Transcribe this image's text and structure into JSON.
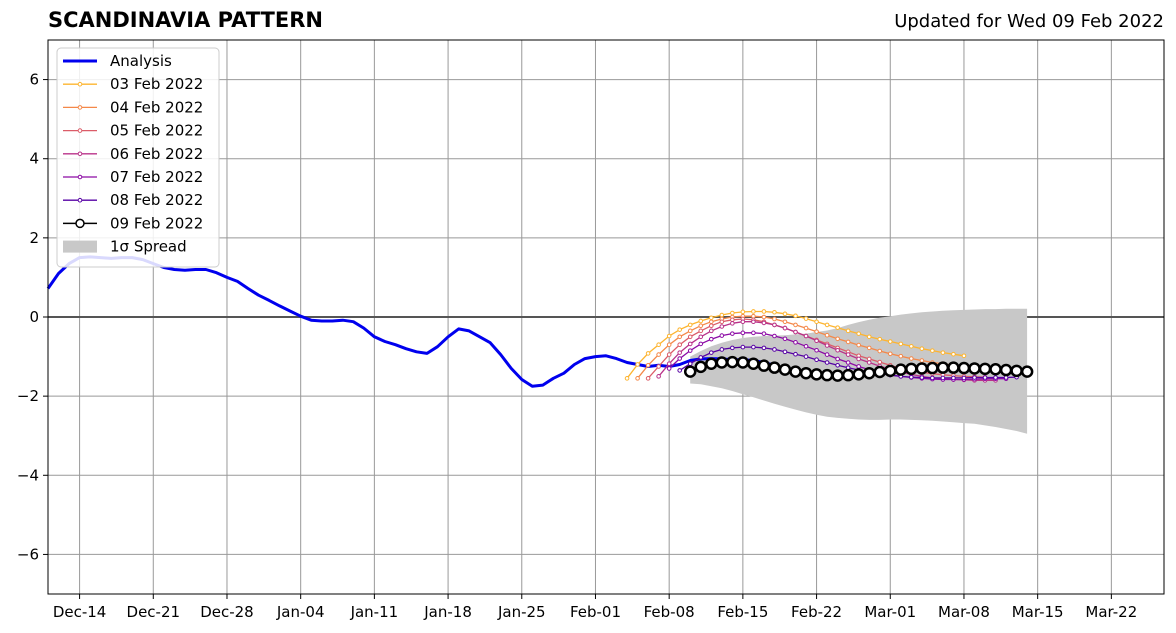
{
  "header": {
    "title": "SCANDINAVIA PATTERN",
    "subtitle": "Updated for Wed 09 Feb 2022"
  },
  "colors": {
    "analysis": "#0000ee",
    "spread": "#c8c8c8",
    "grid": "#999999",
    "zero_line": "#555555",
    "series": {
      "03 Feb 2022": "#fdb42f",
      "04 Feb 2022": "#f48849",
      "05 Feb 2022": "#db5c68",
      "06 Feb 2022": "#b93289",
      "07 Feb 2022": "#8c0aa5",
      "08 Feb 2022": "#5601a4",
      "09 Feb 2022": "#000000"
    }
  },
  "chart_data": {
    "type": "line",
    "title": "SCANDINAVIA PATTERN",
    "subtitle": "Updated for Wed 09 Feb 2022",
    "xlabel": "",
    "ylabel": "",
    "xlim": [
      "2021-12-11",
      "2022-03-27"
    ],
    "ylim": [
      -7,
      7
    ],
    "grid": true,
    "legend_position": "top-left",
    "x_ticks": [
      "2021-12-14",
      "2021-12-21",
      "2021-12-28",
      "2022-01-04",
      "2022-01-11",
      "2022-01-18",
      "2022-01-25",
      "2022-02-01",
      "2022-02-08",
      "2022-02-15",
      "2022-02-22",
      "2022-03-01",
      "2022-03-08",
      "2022-03-15",
      "2022-03-22"
    ],
    "x_tick_labels": [
      "Dec-14",
      "Dec-21",
      "Dec-28",
      "Jan-04",
      "Jan-11",
      "Jan-18",
      "Jan-25",
      "Feb-01",
      "Feb-08",
      "Feb-15",
      "Feb-22",
      "Mar-01",
      "Mar-08",
      "Mar-15",
      "Mar-22"
    ],
    "y_ticks": [
      -6,
      -4,
      -2,
      0,
      2,
      4,
      6
    ],
    "y_tick_labels": [
      "−6",
      "−4",
      "−2",
      "0",
      "2",
      "4",
      "6"
    ],
    "analysis": {
      "name": "Analysis",
      "start": "2021-12-11",
      "values": [
        0.72,
        1.1,
        1.35,
        1.5,
        1.52,
        1.5,
        1.48,
        1.5,
        1.5,
        1.45,
        1.35,
        1.25,
        1.2,
        1.18,
        1.2,
        1.2,
        1.12,
        1.0,
        0.9,
        0.72,
        0.55,
        0.42,
        0.28,
        0.15,
        0.02,
        -0.08,
        -0.1,
        -0.1,
        -0.08,
        -0.12,
        -0.28,
        -0.5,
        -0.62,
        -0.7,
        -0.8,
        -0.88,
        -0.92,
        -0.75,
        -0.5,
        -0.3,
        -0.35,
        -0.5,
        -0.65,
        -0.95,
        -1.3,
        -1.58,
        -1.75,
        -1.72,
        -1.55,
        -1.42,
        -1.2,
        -1.05,
        -1.0,
        -0.98,
        -1.05,
        -1.15,
        -1.2,
        -1.25,
        -1.22,
        -1.25,
        -1.2,
        -1.1,
        -1.06,
        -1.05,
        -1.06,
        -1.08,
        -1.08,
        -1.1,
        -1.15,
        -1.22
      ]
    },
    "forecasts": [
      {
        "name": "03 Feb 2022",
        "start": "2022-02-04",
        "values": [
          -1.55,
          -1.2,
          -0.92,
          -0.7,
          -0.48,
          -0.32,
          -0.2,
          -0.1,
          -0.02,
          0.05,
          0.1,
          0.13,
          0.14,
          0.14,
          0.12,
          0.08,
          0.03,
          -0.04,
          -0.12,
          -0.2,
          -0.27,
          -0.35,
          -0.42,
          -0.5,
          -0.56,
          -0.62,
          -0.68,
          -0.74,
          -0.8,
          -0.85,
          -0.9,
          -0.94,
          -0.98
        ]
      },
      {
        "name": "04 Feb 2022",
        "start": "2022-02-05",
        "values": [
          -1.55,
          -1.22,
          -0.95,
          -0.7,
          -0.5,
          -0.35,
          -0.22,
          -0.12,
          -0.05,
          0.0,
          0.02,
          0.02,
          0.0,
          -0.05,
          -0.12,
          -0.2,
          -0.28,
          -0.37,
          -0.46,
          -0.55,
          -0.63,
          -0.71,
          -0.78,
          -0.86,
          -0.93,
          -0.99,
          -1.05,
          -1.1,
          -1.15,
          -1.18,
          -1.22,
          -1.24,
          -1.26
        ]
      },
      {
        "name": "05 Feb 2022",
        "start": "2022-02-06",
        "values": [
          -1.55,
          -1.25,
          -0.95,
          -0.7,
          -0.5,
          -0.35,
          -0.22,
          -0.12,
          -0.07,
          -0.05,
          -0.07,
          -0.12,
          -0.2,
          -0.28,
          -0.38,
          -0.48,
          -0.58,
          -0.68,
          -0.78,
          -0.88,
          -0.98,
          -1.06,
          -1.14,
          -1.22,
          -1.3,
          -1.35,
          -1.4,
          -1.43,
          -1.46,
          -1.48,
          -1.5,
          -1.51,
          -1.52
        ]
      },
      {
        "name": "06 Feb 2022",
        "start": "2022-02-07",
        "values": [
          -1.5,
          -1.18,
          -0.9,
          -0.68,
          -0.5,
          -0.35,
          -0.24,
          -0.16,
          -0.12,
          -0.12,
          -0.15,
          -0.2,
          -0.28,
          -0.38,
          -0.48,
          -0.6,
          -0.72,
          -0.84,
          -0.95,
          -1.06,
          -1.15,
          -1.24,
          -1.32,
          -1.39,
          -1.45,
          -1.5,
          -1.54,
          -1.56,
          -1.58,
          -1.59,
          -1.6,
          -1.6,
          -1.6
        ]
      },
      {
        "name": "07 Feb 2022",
        "start": "2022-02-08",
        "values": [
          -1.3,
          -1.05,
          -0.85,
          -0.68,
          -0.56,
          -0.47,
          -0.42,
          -0.4,
          -0.4,
          -0.42,
          -0.48,
          -0.55,
          -0.64,
          -0.74,
          -0.84,
          -0.95,
          -1.06,
          -1.15,
          -1.25,
          -1.33,
          -1.4,
          -1.46,
          -1.5,
          -1.53,
          -1.55,
          -1.57,
          -1.58,
          -1.58,
          -1.58,
          -1.57,
          -1.56,
          -1.56,
          -1.56
        ]
      },
      {
        "name": "08 Feb 2022",
        "start": "2022-02-09",
        "values": [
          -1.35,
          -1.18,
          -1.02,
          -0.9,
          -0.82,
          -0.78,
          -0.76,
          -0.76,
          -0.78,
          -0.82,
          -0.88,
          -0.94,
          -1.0,
          -1.08,
          -1.15,
          -1.22,
          -1.28,
          -1.34,
          -1.39,
          -1.43,
          -1.47,
          -1.5,
          -1.52,
          -1.53,
          -1.54,
          -1.54,
          -1.54,
          -1.54,
          -1.53,
          -1.53,
          -1.53,
          -1.53,
          -1.52
        ]
      },
      {
        "name": "09 Feb 2022",
        "start": "2022-02-10",
        "values": [
          -1.38,
          -1.26,
          -1.18,
          -1.15,
          -1.14,
          -1.15,
          -1.18,
          -1.23,
          -1.28,
          -1.33,
          -1.38,
          -1.42,
          -1.45,
          -1.47,
          -1.48,
          -1.47,
          -1.45,
          -1.42,
          -1.39,
          -1.36,
          -1.33,
          -1.31,
          -1.3,
          -1.29,
          -1.28,
          -1.28,
          -1.29,
          -1.3,
          -1.31,
          -1.32,
          -1.34,
          -1.36,
          -1.38
        ]
      }
    ],
    "spread": {
      "name": "1σ Spread",
      "start": "2022-02-10",
      "upper": [
        -1.0,
        -0.86,
        -0.74,
        -0.65,
        -0.58,
        -0.53,
        -0.5,
        -0.48,
        -0.47,
        -0.46,
        -0.44,
        -0.42,
        -0.38,
        -0.34,
        -0.28,
        -0.2,
        -0.13,
        -0.07,
        -0.02,
        0.02,
        0.06,
        0.09,
        0.12,
        0.14,
        0.16,
        0.17,
        0.18,
        0.19,
        0.2,
        0.2,
        0.21,
        0.21,
        0.21
      ],
      "lower": [
        -1.68,
        -1.7,
        -1.75,
        -1.8,
        -1.87,
        -1.95,
        -2.03,
        -2.11,
        -2.19,
        -2.27,
        -2.34,
        -2.41,
        -2.47,
        -2.52,
        -2.55,
        -2.57,
        -2.59,
        -2.6,
        -2.6,
        -2.59,
        -2.59,
        -2.6,
        -2.61,
        -2.62,
        -2.64,
        -2.66,
        -2.68,
        -2.7,
        -2.74,
        -2.78,
        -2.83,
        -2.88,
        -2.95
      ]
    },
    "legend": [
      "Analysis",
      "03 Feb 2022",
      "04 Feb 2022",
      "05 Feb 2022",
      "06 Feb 2022",
      "07 Feb 2022",
      "08 Feb 2022",
      "09 Feb 2022",
      "1σ Spread"
    ]
  }
}
